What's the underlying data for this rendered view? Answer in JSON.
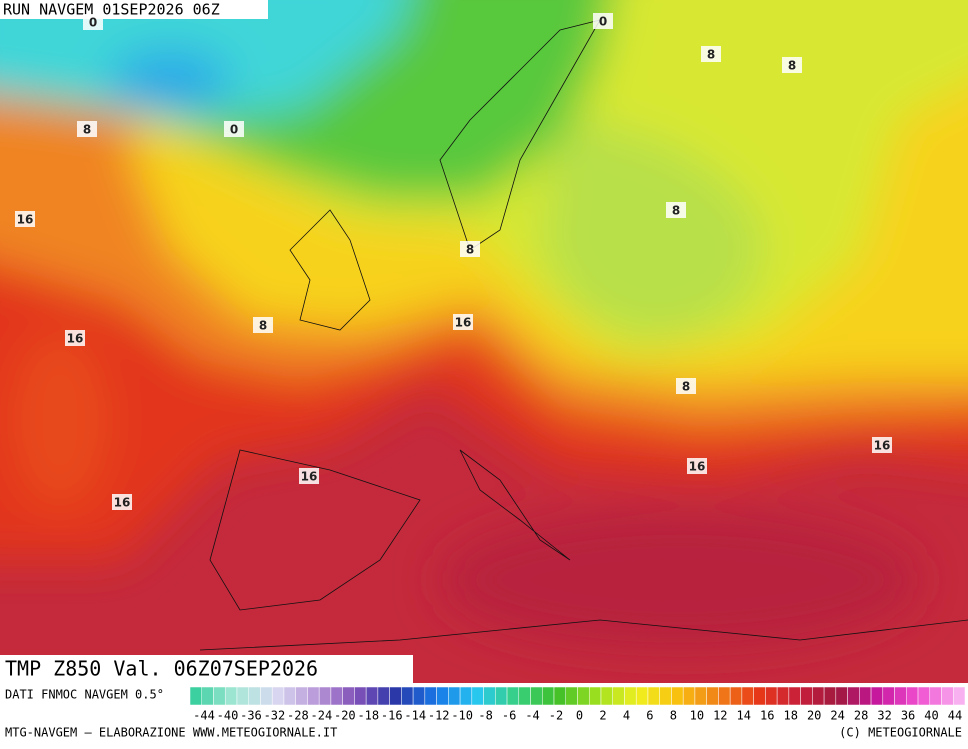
{
  "header": {
    "run": "RUN NAVGEM 01SEP2026 06Z"
  },
  "contour_labels": [
    0,
    0,
    8,
    8,
    8,
    0,
    16,
    8,
    8,
    8,
    16,
    16,
    8,
    16,
    16,
    16,
    16
  ],
  "footer": {
    "field": "TMP Z850 Val. 06Z07SEP2026",
    "source": "DATI FNMOC NAVGEM 0.5°",
    "credit": "MTG-NAVGEM – ELABORAZIONE WWW.METEOGIORNALE.IT",
    "copyright": "(C) METEOGIORNALE"
  },
  "scale": {
    "ticks": [
      -44,
      -40,
      -36,
      -32,
      -28,
      -24,
      -20,
      -18,
      -16,
      -14,
      -12,
      -10,
      -8,
      -6,
      -4,
      -2,
      0,
      2,
      4,
      6,
      8,
      10,
      12,
      14,
      16,
      18,
      20,
      24,
      28,
      32,
      36,
      40,
      44
    ]
  }
}
